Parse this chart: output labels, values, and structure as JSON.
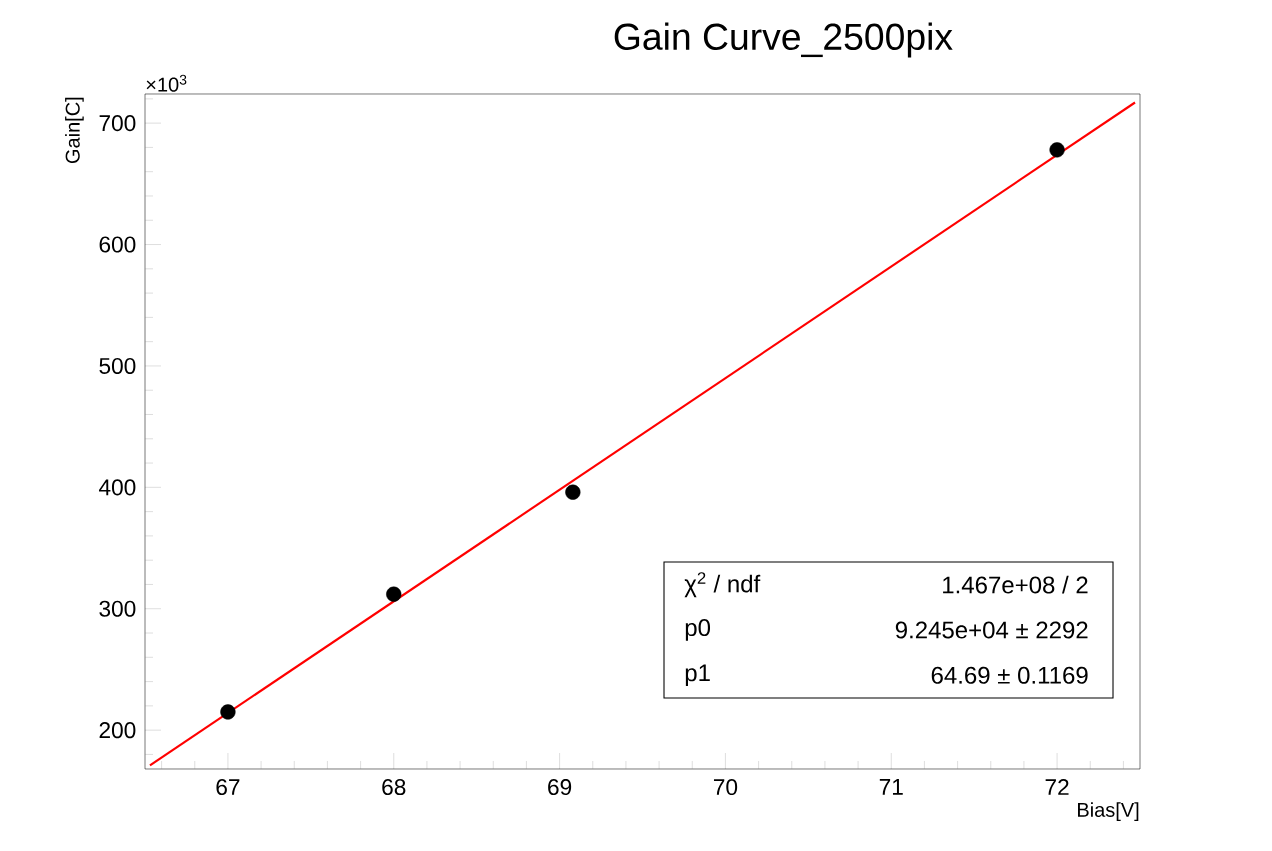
{
  "chart_data": {
    "type": "scatter",
    "title": "Gain Curve_2500pix",
    "xlabel": "Bias[V]",
    "ylabel": "Gain[C]",
    "marker": "circle",
    "x": [
      67,
      68,
      69.08,
      72
    ],
    "series": [
      {
        "color": "#000000",
        "values": [
          215,
          312,
          396,
          678
        ]
      },
      {
        "type": "line",
        "color": "#ff0000",
        "marker": "none",
        "line_style": "solid",
        "x": [
          66.53,
          72.47
        ],
        "values": [
          171,
          717
        ]
      }
    ],
    "xlim": [
      66.5,
      72.5
    ],
    "ylim": [
      168,
      724
    ],
    "xticks": [
      {
        "value": 66.6,
        "label": null
      },
      {
        "value": 66.8,
        "label": null
      },
      67,
      {
        "value": 67.2,
        "label": null
      },
      {
        "value": 67.4,
        "label": null
      },
      {
        "value": 67.6,
        "label": null
      },
      {
        "value": 67.8,
        "label": null
      },
      68,
      {
        "value": 68.2,
        "label": null
      },
      {
        "value": 68.4,
        "label": null
      },
      {
        "value": 68.6,
        "label": null
      },
      {
        "value": 68.8,
        "label": null
      },
      69,
      {
        "value": 69.2,
        "label": null
      },
      {
        "value": 69.4,
        "label": null
      },
      {
        "value": 69.6,
        "label": null
      },
      {
        "value": 69.8,
        "label": null
      },
      70,
      {
        "value": 70.2,
        "label": null
      },
      {
        "value": 70.4,
        "label": null
      },
      {
        "value": 70.6,
        "label": null
      },
      {
        "value": 70.8,
        "label": null
      },
      71,
      {
        "value": 71.2,
        "label": null
      },
      {
        "value": 71.4,
        "label": null
      },
      {
        "value": 71.6,
        "label": null
      },
      {
        "value": 71.8,
        "label": null
      },
      72,
      {
        "value": 72.2,
        "label": null
      },
      {
        "value": 72.4,
        "label": null
      }
    ],
    "yticks": [
      {
        "value": 180,
        "label": null
      },
      200,
      {
        "value": 220,
        "label": null
      },
      {
        "value": 240,
        "label": null
      },
      {
        "value": 260,
        "label": null
      },
      {
        "value": 280,
        "label": null
      },
      300,
      {
        "value": 320,
        "label": null
      },
      {
        "value": 340,
        "label": null
      },
      {
        "value": 360,
        "label": null
      },
      {
        "value": 380,
        "label": null
      },
      400,
      {
        "value": 420,
        "label": null
      },
      {
        "value": 440,
        "label": null
      },
      {
        "value": 460,
        "label": null
      },
      {
        "value": 480,
        "label": null
      },
      500,
      {
        "value": 520,
        "label": null
      },
      {
        "value": 540,
        "label": null
      },
      {
        "value": 560,
        "label": null
      },
      {
        "value": 580,
        "label": null
      },
      600,
      {
        "value": 620,
        "label": null
      },
      {
        "value": 640,
        "label": null
      },
      {
        "value": 660,
        "label": null
      },
      {
        "value": 680,
        "label": null
      },
      700,
      {
        "value": 720,
        "label": null
      }
    ],
    "annotations": [
      "×10$^{3}$",
      "χ$^{2}$ / ndf",
      "1.467e+08 / 2",
      "p0",
      "9.245e+04 ±  2292",
      "p1",
      "64.69 ± 0.1169"
    ]
  }
}
